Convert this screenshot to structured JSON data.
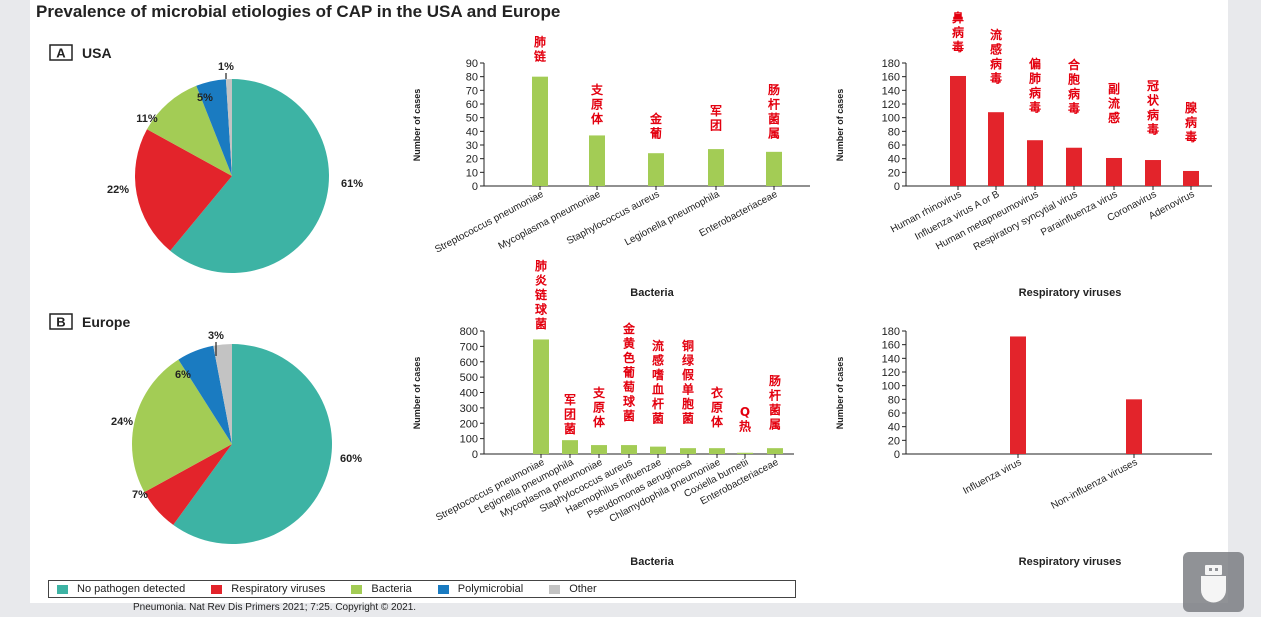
{
  "title": "Prevalence of microbial etiologies of CAP in the USA and Europe",
  "credit": "Pneumonia. Nat Rev Dis Primers 2021; 7:25. Copyright © 2021.",
  "colors": {
    "no_pathogen": "#3db3a4",
    "resp_viruses": "#e3242b",
    "bacteria": "#a3cc55",
    "polymicrobial": "#1a7bc1",
    "other": "#c3c3c3"
  },
  "legend": [
    {
      "label": "No pathogen detected",
      "color": "#3db3a4"
    },
    {
      "label": "Respiratory viruses",
      "color": "#e3242b"
    },
    {
      "label": "Bacteria",
      "color": "#a3cc55"
    },
    {
      "label": "Polymicrobial",
      "color": "#1a7bc1"
    },
    {
      "label": "Other",
      "color": "#c3c3c3"
    }
  ],
  "tray_icon": "usb-drive-icon",
  "chart_data": [
    {
      "type": "pie",
      "panel_letter": "A",
      "title": "USA",
      "slices": [
        {
          "label": "61%",
          "value": 61,
          "color": "#3db3a4"
        },
        {
          "label": "22%",
          "value": 22,
          "color": "#e3242b"
        },
        {
          "label": "11%",
          "value": 11,
          "color": "#a3cc55"
        },
        {
          "label": "5%",
          "value": 5,
          "color": "#1a7bc1"
        },
        {
          "label": "1%",
          "value": 1,
          "color": "#c3c3c3"
        }
      ]
    },
    {
      "type": "bar",
      "xlabel": "Bacteria",
      "ylabel": "Number of cases",
      "ylim": [
        0,
        90
      ],
      "yticks": [
        "0",
        "10",
        "20",
        "30",
        "40",
        "50",
        "60",
        "70",
        "80",
        "90"
      ],
      "color": "#a3cc55",
      "categories": [
        "Streptococcus pneumoniae",
        "Mycoplasma pneumoniae",
        "Staphylococcus aureus",
        "Legionella pneumophila",
        "Enterobacteriaceae"
      ],
      "values": [
        80,
        37,
        24,
        27,
        25
      ],
      "annotations": [
        "肺链",
        "支原体",
        "金葡",
        "军团",
        "肠杆菌属"
      ]
    },
    {
      "type": "bar",
      "xlabel": "Respiratory viruses",
      "ylabel": "Number of cases",
      "ylim": [
        0,
        180
      ],
      "yticks": [
        "0",
        "20",
        "40",
        "60",
        "80",
        "100",
        "120",
        "140",
        "160",
        "180"
      ],
      "color": "#e3242b",
      "categories": [
        "Human rhinovirus",
        "Influenza virus A or B",
        "Human metapneumovirus",
        "Respiratory syncytial virus",
        "Parainfluenza virus",
        "Coronavirus",
        "Adenovirus"
      ],
      "values": [
        161,
        108,
        67,
        56,
        41,
        38,
        22
      ],
      "annotations": [
        "鼻病毒",
        "流感病毒",
        "偏肺病毒",
        "合胞病毒",
        "副流感",
        "冠状病毒",
        "腺病毒"
      ]
    },
    {
      "type": "pie",
      "panel_letter": "B",
      "title": "Europe",
      "slices": [
        {
          "label": "60%",
          "value": 60,
          "color": "#3db3a4"
        },
        {
          "label": "7%",
          "value": 7,
          "color": "#e3242b"
        },
        {
          "label": "24%",
          "value": 24,
          "color": "#a3cc55"
        },
        {
          "label": "6%",
          "value": 6,
          "color": "#1a7bc1"
        },
        {
          "label": "3%",
          "value": 3,
          "color": "#c3c3c3"
        }
      ]
    },
    {
      "type": "bar",
      "xlabel": "Bacteria",
      "ylabel": "Number of cases",
      "ylim": [
        0,
        800
      ],
      "yticks": [
        "0",
        "100",
        "200",
        "300",
        "400",
        "500",
        "600",
        "700",
        "800"
      ],
      "color": "#a3cc55",
      "categories": [
        "Streptococcus pneumoniae",
        "Legionella pneumophila",
        "Mycoplasma pneumoniae",
        "Staphylococcus aureus",
        "Haemophilus influenzae",
        "Pseudomonas aeruginosa",
        "Chlamydophila pneumoniae",
        "Coxiella burnetii",
        "Enterobacteriaceae"
      ],
      "values": [
        745,
        90,
        58,
        58,
        48,
        38,
        38,
        8,
        38
      ],
      "annotations": [
        "肺炎链球菌",
        "军团菌",
        "支原体",
        "金黄色葡萄球菌",
        "流感嗜血杆菌",
        "铜绿假单胞菌",
        "衣原体",
        "Q热",
        "肠杆菌属"
      ]
    },
    {
      "type": "bar",
      "xlabel": "Respiratory viruses",
      "ylabel": "Number of cases",
      "ylim": [
        0,
        180
      ],
      "yticks": [
        "0",
        "20",
        "40",
        "60",
        "80",
        "100",
        "120",
        "140",
        "160",
        "180"
      ],
      "color": "#e3242b",
      "categories": [
        "Influenza virus",
        "Non-influenza viruses"
      ],
      "values": [
        172,
        80
      ],
      "annotations": []
    }
  ]
}
